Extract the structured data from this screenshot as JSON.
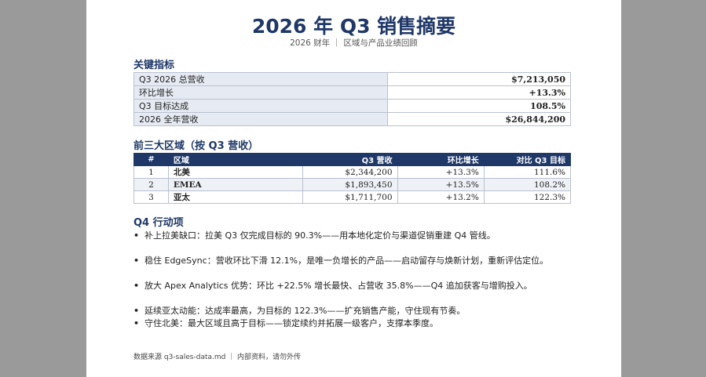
{
  "header": {
    "title": "2026 年 Q3 销售摘要",
    "subtitle": "2026 财年 ｜ 区域与产品业绩回顾"
  },
  "metrics": {
    "heading": "关键指标",
    "rows": [
      {
        "label": "Q3 2026 总营收",
        "value": "$7,213,050"
      },
      {
        "label": "环比增长",
        "value": "+13.3%"
      },
      {
        "label": "Q3 目标达成",
        "value": "108.5%"
      },
      {
        "label": "2026 全年营收",
        "value": "$26,844,200"
      }
    ]
  },
  "regions": {
    "heading": "前三大区域（按 Q3 营收）",
    "columns": [
      "#",
      "区域",
      "Q3 营收",
      "环比增长",
      "对比 Q3 目标"
    ],
    "rows": [
      {
        "idx": "1",
        "region": "北美",
        "revenue": "$2,344,200",
        "qoq": "+13.3%",
        "target": "111.6%"
      },
      {
        "idx": "2",
        "region": "EMEA",
        "revenue": "$1,893,450",
        "qoq": "+13.5%",
        "target": "108.2%"
      },
      {
        "idx": "3",
        "region": "亚太",
        "revenue": "$1,711,700",
        "qoq": "+13.2%",
        "target": "122.3%"
      }
    ]
  },
  "actions": {
    "heading": "Q4 行动项",
    "bullet": "•",
    "items": [
      "补上拉美缺口：拉美 Q3 仅完成目标的 90.3%——用本地化定价与渠道促销重建 Q4 管线。",
      "稳住 EdgeSync：营收环比下滑 12.1%，是唯一负增长的产品——启动留存与焕新计划，重新评估定位。",
      "放大 Apex Analytics 优势：环比 +22.5% 增长最快、占营收 35.8%——Q4 追加获客与增购投入。",
      "延续亚太动能：达成率最高，为目标的 122.3%——扩充销售产能，守住现有节奏。",
      "守住北美：最大区域且高于目标——锁定续约并拓展一级客户，支撑本季度。"
    ]
  },
  "footer": {
    "text": "数据来源 q3-sales-data.md ｜ 内部资料，请勿外传"
  }
}
